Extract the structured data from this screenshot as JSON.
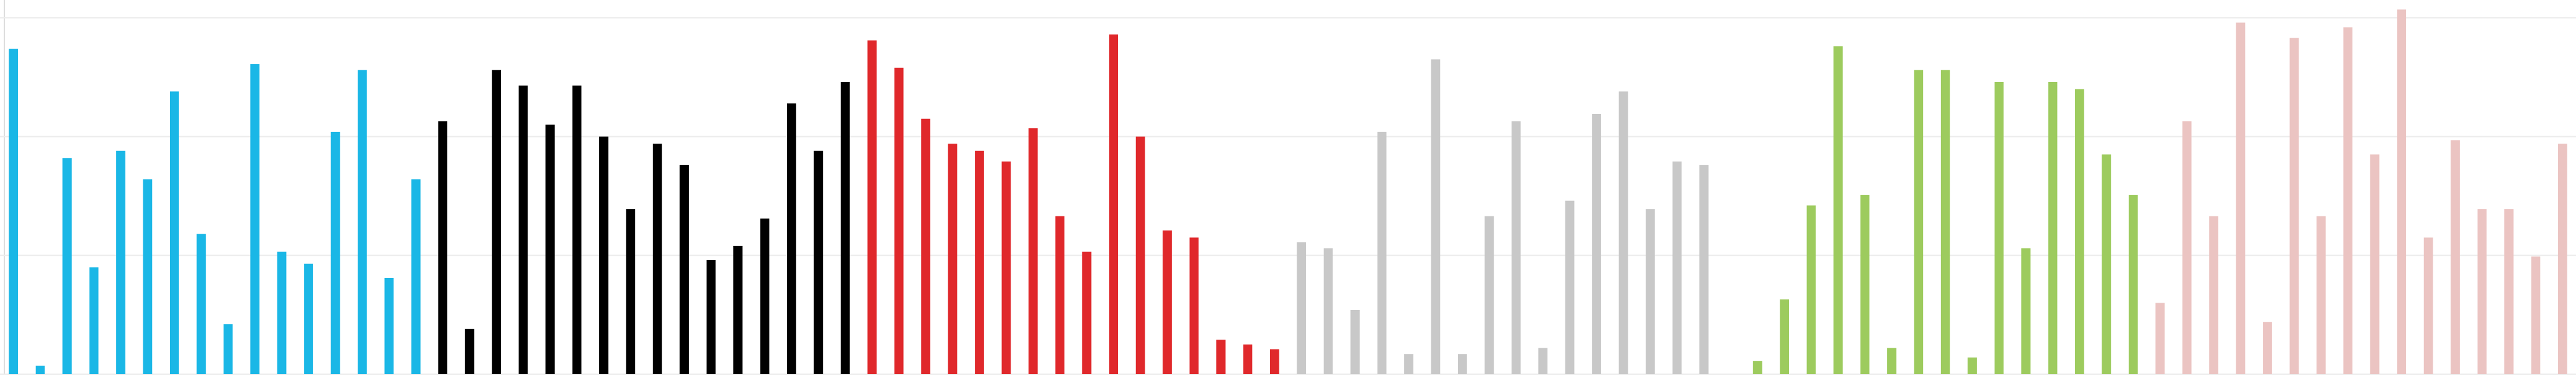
{
  "chart_data": {
    "type": "bar",
    "series": [
      {
        "color": "#1ab7e6",
        "values": [
          2.74,
          0.07,
          1.82,
          0.9,
          1.88,
          1.64,
          2.38,
          1.18,
          0.42,
          2.61,
          1.03,
          0.93,
          2.04,
          2.56,
          0.81,
          1.64
        ]
      },
      {
        "color": "#000000",
        "values": [
          2.13,
          0.38,
          2.56,
          2.43,
          2.1,
          2.43,
          2.0,
          1.39,
          1.94,
          1.76,
          0.96,
          1.08,
          1.31,
          2.28,
          1.88,
          2.46
        ]
      },
      {
        "color": "#e0282b",
        "values": [
          2.81,
          2.58,
          2.15,
          1.94,
          1.88,
          1.79,
          2.07,
          1.33,
          1.03,
          2.86,
          2.0,
          1.21,
          1.15,
          0.29,
          0.25,
          0.21
        ]
      },
      {
        "color": "#c8c8c8",
        "values": [
          1.11,
          1.06,
          0.54,
          2.04,
          0.17,
          2.65,
          0.17,
          1.33,
          2.13,
          0.22,
          1.46,
          2.19,
          2.38,
          1.39,
          1.79,
          1.76
        ]
      },
      {
        "color": "#9dcb5e",
        "values": [
          0,
          0.11,
          0.63,
          1.42,
          2.76,
          1.51,
          0.22,
          2.56,
          2.56,
          0.14,
          2.46,
          1.06,
          2.46,
          2.4,
          1.85,
          1.51
        ]
      },
      {
        "color": "#ebc4c2",
        "values": [
          0.6,
          2.13,
          1.33,
          2.96,
          0.44,
          2.83,
          1.33,
          2.92,
          1.85,
          3.07,
          1.15,
          1.97,
          1.39,
          1.39,
          0.99,
          1.94
        ]
      }
    ],
    "ylim": [
      0,
      3.15
    ],
    "yticks": [
      0,
      1,
      2,
      3
    ],
    "grid": true
  }
}
